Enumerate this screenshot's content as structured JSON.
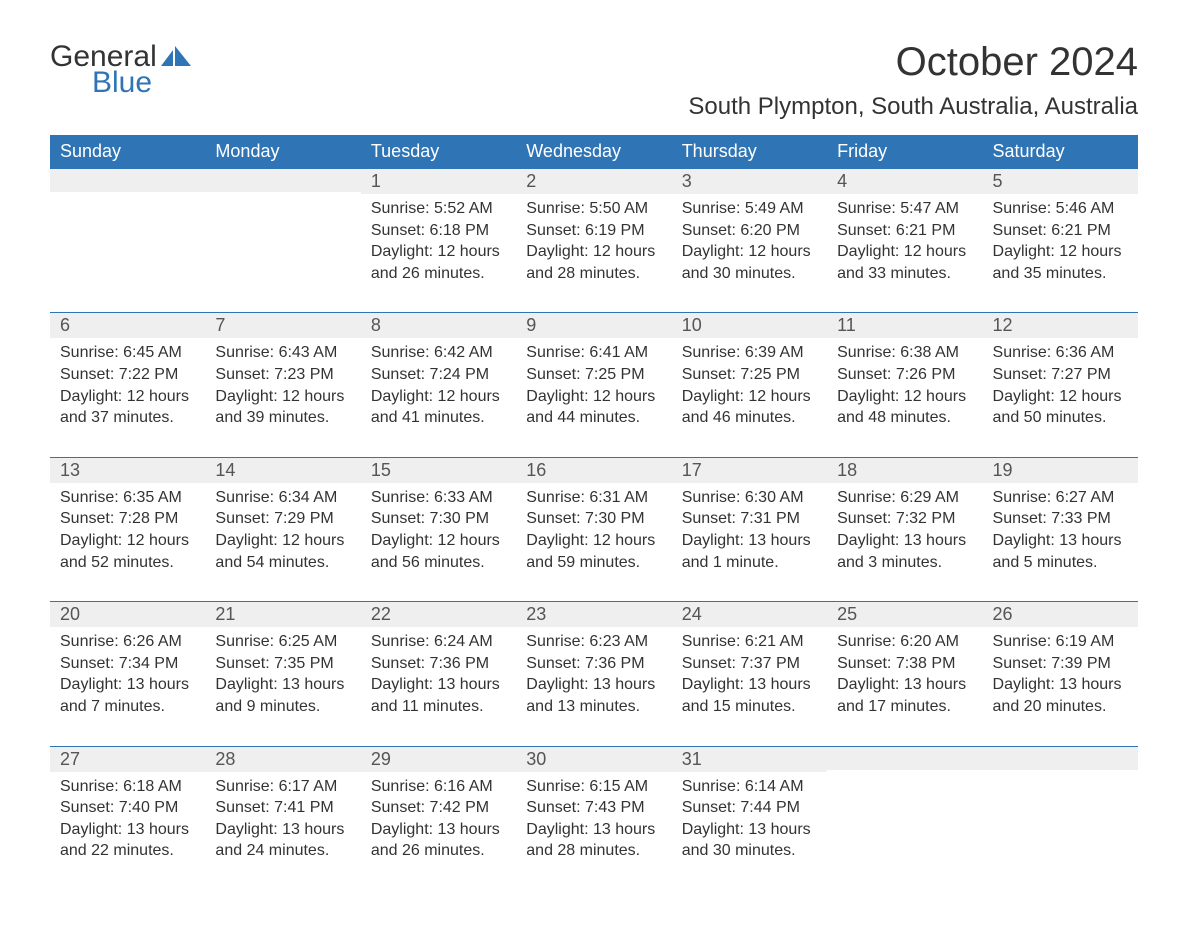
{
  "logo": {
    "word1": "General",
    "word2": "Blue",
    "brand_color": "#2f75b5"
  },
  "title": "October 2024",
  "location": "South Plympton, South Australia, Australia",
  "colors": {
    "header_bg": "#2f75b5",
    "header_text": "#ffffff",
    "daybar_bg": "#efefef",
    "daybar_border": "#2f75b5",
    "body_text": "#333333",
    "background": "#ffffff"
  },
  "fonts": {
    "title_pt": 40,
    "location_pt": 24,
    "header_pt": 18,
    "daynum_pt": 18,
    "body_pt": 16
  },
  "layout": {
    "columns": 7,
    "weeks": 5,
    "first_day": "Sunday"
  },
  "weekdays": [
    "Sunday",
    "Monday",
    "Tuesday",
    "Wednesday",
    "Thursday",
    "Friday",
    "Saturday"
  ],
  "weeks": [
    [
      null,
      null,
      {
        "n": "1",
        "sunrise": "5:52 AM",
        "sunset": "6:18 PM",
        "daylight1": "12 hours",
        "daylight2": "and 26 minutes."
      },
      {
        "n": "2",
        "sunrise": "5:50 AM",
        "sunset": "6:19 PM",
        "daylight1": "12 hours",
        "daylight2": "and 28 minutes."
      },
      {
        "n": "3",
        "sunrise": "5:49 AM",
        "sunset": "6:20 PM",
        "daylight1": "12 hours",
        "daylight2": "and 30 minutes."
      },
      {
        "n": "4",
        "sunrise": "5:47 AM",
        "sunset": "6:21 PM",
        "daylight1": "12 hours",
        "daylight2": "and 33 minutes."
      },
      {
        "n": "5",
        "sunrise": "5:46 AM",
        "sunset": "6:21 PM",
        "daylight1": "12 hours",
        "daylight2": "and 35 minutes."
      }
    ],
    [
      {
        "n": "6",
        "sunrise": "6:45 AM",
        "sunset": "7:22 PM",
        "daylight1": "12 hours",
        "daylight2": "and 37 minutes."
      },
      {
        "n": "7",
        "sunrise": "6:43 AM",
        "sunset": "7:23 PM",
        "daylight1": "12 hours",
        "daylight2": "and 39 minutes."
      },
      {
        "n": "8",
        "sunrise": "6:42 AM",
        "sunset": "7:24 PM",
        "daylight1": "12 hours",
        "daylight2": "and 41 minutes."
      },
      {
        "n": "9",
        "sunrise": "6:41 AM",
        "sunset": "7:25 PM",
        "daylight1": "12 hours",
        "daylight2": "and 44 minutes."
      },
      {
        "n": "10",
        "sunrise": "6:39 AM",
        "sunset": "7:25 PM",
        "daylight1": "12 hours",
        "daylight2": "and 46 minutes."
      },
      {
        "n": "11",
        "sunrise": "6:38 AM",
        "sunset": "7:26 PM",
        "daylight1": "12 hours",
        "daylight2": "and 48 minutes."
      },
      {
        "n": "12",
        "sunrise": "6:36 AM",
        "sunset": "7:27 PM",
        "daylight1": "12 hours",
        "daylight2": "and 50 minutes."
      }
    ],
    [
      {
        "n": "13",
        "sunrise": "6:35 AM",
        "sunset": "7:28 PM",
        "daylight1": "12 hours",
        "daylight2": "and 52 minutes."
      },
      {
        "n": "14",
        "sunrise": "6:34 AM",
        "sunset": "7:29 PM",
        "daylight1": "12 hours",
        "daylight2": "and 54 minutes."
      },
      {
        "n": "15",
        "sunrise": "6:33 AM",
        "sunset": "7:30 PM",
        "daylight1": "12 hours",
        "daylight2": "and 56 minutes."
      },
      {
        "n": "16",
        "sunrise": "6:31 AM",
        "sunset": "7:30 PM",
        "daylight1": "12 hours",
        "daylight2": "and 59 minutes."
      },
      {
        "n": "17",
        "sunrise": "6:30 AM",
        "sunset": "7:31 PM",
        "daylight1": "13 hours",
        "daylight2": "and 1 minute."
      },
      {
        "n": "18",
        "sunrise": "6:29 AM",
        "sunset": "7:32 PM",
        "daylight1": "13 hours",
        "daylight2": "and 3 minutes."
      },
      {
        "n": "19",
        "sunrise": "6:27 AM",
        "sunset": "7:33 PM",
        "daylight1": "13 hours",
        "daylight2": "and 5 minutes."
      }
    ],
    [
      {
        "n": "20",
        "sunrise": "6:26 AM",
        "sunset": "7:34 PM",
        "daylight1": "13 hours",
        "daylight2": "and 7 minutes."
      },
      {
        "n": "21",
        "sunrise": "6:25 AM",
        "sunset": "7:35 PM",
        "daylight1": "13 hours",
        "daylight2": "and 9 minutes."
      },
      {
        "n": "22",
        "sunrise": "6:24 AM",
        "sunset": "7:36 PM",
        "daylight1": "13 hours",
        "daylight2": "and 11 minutes."
      },
      {
        "n": "23",
        "sunrise": "6:23 AM",
        "sunset": "7:36 PM",
        "daylight1": "13 hours",
        "daylight2": "and 13 minutes."
      },
      {
        "n": "24",
        "sunrise": "6:21 AM",
        "sunset": "7:37 PM",
        "daylight1": "13 hours",
        "daylight2": "and 15 minutes."
      },
      {
        "n": "25",
        "sunrise": "6:20 AM",
        "sunset": "7:38 PM",
        "daylight1": "13 hours",
        "daylight2": "and 17 minutes."
      },
      {
        "n": "26",
        "sunrise": "6:19 AM",
        "sunset": "7:39 PM",
        "daylight1": "13 hours",
        "daylight2": "and 20 minutes."
      }
    ],
    [
      {
        "n": "27",
        "sunrise": "6:18 AM",
        "sunset": "7:40 PM",
        "daylight1": "13 hours",
        "daylight2": "and 22 minutes."
      },
      {
        "n": "28",
        "sunrise": "6:17 AM",
        "sunset": "7:41 PM",
        "daylight1": "13 hours",
        "daylight2": "and 24 minutes."
      },
      {
        "n": "29",
        "sunrise": "6:16 AM",
        "sunset": "7:42 PM",
        "daylight1": "13 hours",
        "daylight2": "and 26 minutes."
      },
      {
        "n": "30",
        "sunrise": "6:15 AM",
        "sunset": "7:43 PM",
        "daylight1": "13 hours",
        "daylight2": "and 28 minutes."
      },
      {
        "n": "31",
        "sunrise": "6:14 AM",
        "sunset": "7:44 PM",
        "daylight1": "13 hours",
        "daylight2": "and 30 minutes."
      },
      null,
      null
    ]
  ],
  "labels": {
    "sunrise": "Sunrise: ",
    "sunset": "Sunset: ",
    "daylight": "Daylight: "
  }
}
